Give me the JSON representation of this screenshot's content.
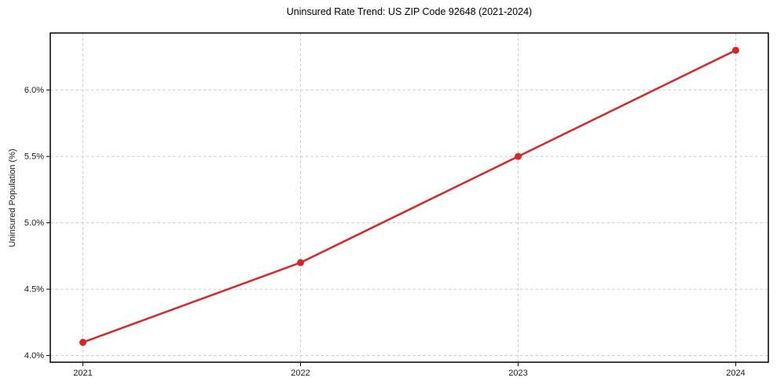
{
  "figure": {
    "background": "#ffffff"
  },
  "chart_data": {
    "type": "line",
    "title": "Uninsured Rate Trend: US ZIP Code 92648 (2021-2024)",
    "xlabel": "",
    "ylabel": "Uninsured Population (%)",
    "x": [
      2021,
      2022,
      2023,
      2024
    ],
    "series": [
      {
        "values": [
          4.1,
          4.7,
          5.5,
          6.3
        ],
        "color": "#d62728",
        "marker": "circle"
      }
    ],
    "xlim": [
      2020.85,
      2024.15
    ],
    "ylim": [
      3.95,
      6.43
    ],
    "xticks": {
      "values": [
        2021,
        2022,
        2023,
        2024
      ],
      "labels": [
        "2021",
        "2022",
        "2023",
        "2024"
      ]
    },
    "yticks": {
      "values": [
        4.0,
        4.5,
        5.0,
        5.5,
        6.0
      ],
      "labels": [
        "4.0%",
        "4.5%",
        "5.0%",
        "5.5%",
        "6.0%"
      ]
    },
    "grid": {
      "show": true,
      "style": "dashed",
      "color": "#cdcdcd"
    },
    "spine_color": "#000000",
    "text_color": "#1a1a1a",
    "legend": null
  }
}
